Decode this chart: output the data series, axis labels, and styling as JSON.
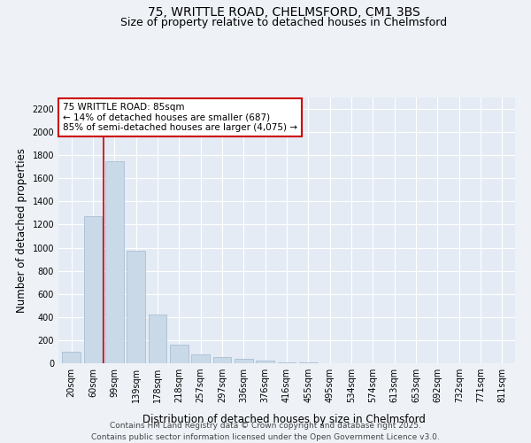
{
  "title_line1": "75, WRITTLE ROAD, CHELMSFORD, CM1 3BS",
  "title_line2": "Size of property relative to detached houses in Chelmsford",
  "xlabel": "Distribution of detached houses by size in Chelmsford",
  "ylabel": "Number of detached properties",
  "categories": [
    "20sqm",
    "60sqm",
    "99sqm",
    "139sqm",
    "178sqm",
    "218sqm",
    "257sqm",
    "297sqm",
    "336sqm",
    "376sqm",
    "416sqm",
    "455sqm",
    "495sqm",
    "534sqm",
    "574sqm",
    "613sqm",
    "653sqm",
    "692sqm",
    "732sqm",
    "771sqm",
    "811sqm"
  ],
  "values": [
    100,
    1270,
    1750,
    975,
    420,
    160,
    80,
    55,
    40,
    22,
    8,
    4,
    2,
    1,
    1,
    0,
    0,
    0,
    0,
    0,
    0
  ],
  "bar_color": "#c9d9e8",
  "bar_edge_color": "#a0b8d0",
  "vline_x": 1.5,
  "vline_color": "#cc0000",
  "annotation_title": "75 WRITTLE ROAD: 85sqm",
  "annotation_line1": "← 14% of detached houses are smaller (687)",
  "annotation_line2": "85% of semi-detached houses are larger (4,075) →",
  "annotation_box_color": "#ffffff",
  "annotation_box_edgecolor": "#cc0000",
  "ylim": [
    0,
    2300
  ],
  "yticks": [
    0,
    200,
    400,
    600,
    800,
    1000,
    1200,
    1400,
    1600,
    1800,
    2000,
    2200
  ],
  "footer_line1": "Contains HM Land Registry data © Crown copyright and database right 2025.",
  "footer_line2": "Contains public sector information licensed under the Open Government Licence v3.0.",
  "background_color": "#eef2f7",
  "plot_background_color": "#e4ebf4",
  "grid_color": "#ffffff",
  "title_fontsize": 10,
  "subtitle_fontsize": 9,
  "axis_label_fontsize": 8.5,
  "tick_fontsize": 7,
  "annotation_fontsize": 7.5,
  "footer_fontsize": 6.5
}
